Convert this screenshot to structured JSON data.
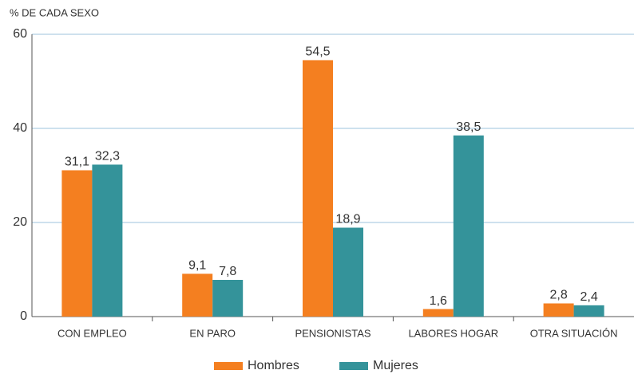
{
  "chart_data": {
    "type": "bar",
    "ylabel": "% DE CADA SEXO",
    "categories": [
      "CON EMPLEO",
      "EN PARO",
      "PENSIONISTAS",
      "LABORES HOGAR",
      "OTRA SITUACIÓN"
    ],
    "series": [
      {
        "name": "Hombres",
        "color": "#f47f20",
        "values": [
          31.1,
          9.1,
          54.5,
          1.6,
          2.8
        ],
        "value_labels": [
          "31,1",
          "9,1",
          "54,5",
          "1,6",
          "2,8"
        ]
      },
      {
        "name": "Mujeres",
        "color": "#34939a",
        "values": [
          32.3,
          7.8,
          18.9,
          38.5,
          2.4
        ],
        "value_labels": [
          "32,3",
          "7,8",
          "18,9",
          "38,5",
          "2,4"
        ]
      }
    ],
    "ylim": [
      0,
      60
    ],
    "yticks": [
      0,
      20,
      40,
      60
    ],
    "grid": true,
    "legend": "bottom"
  }
}
